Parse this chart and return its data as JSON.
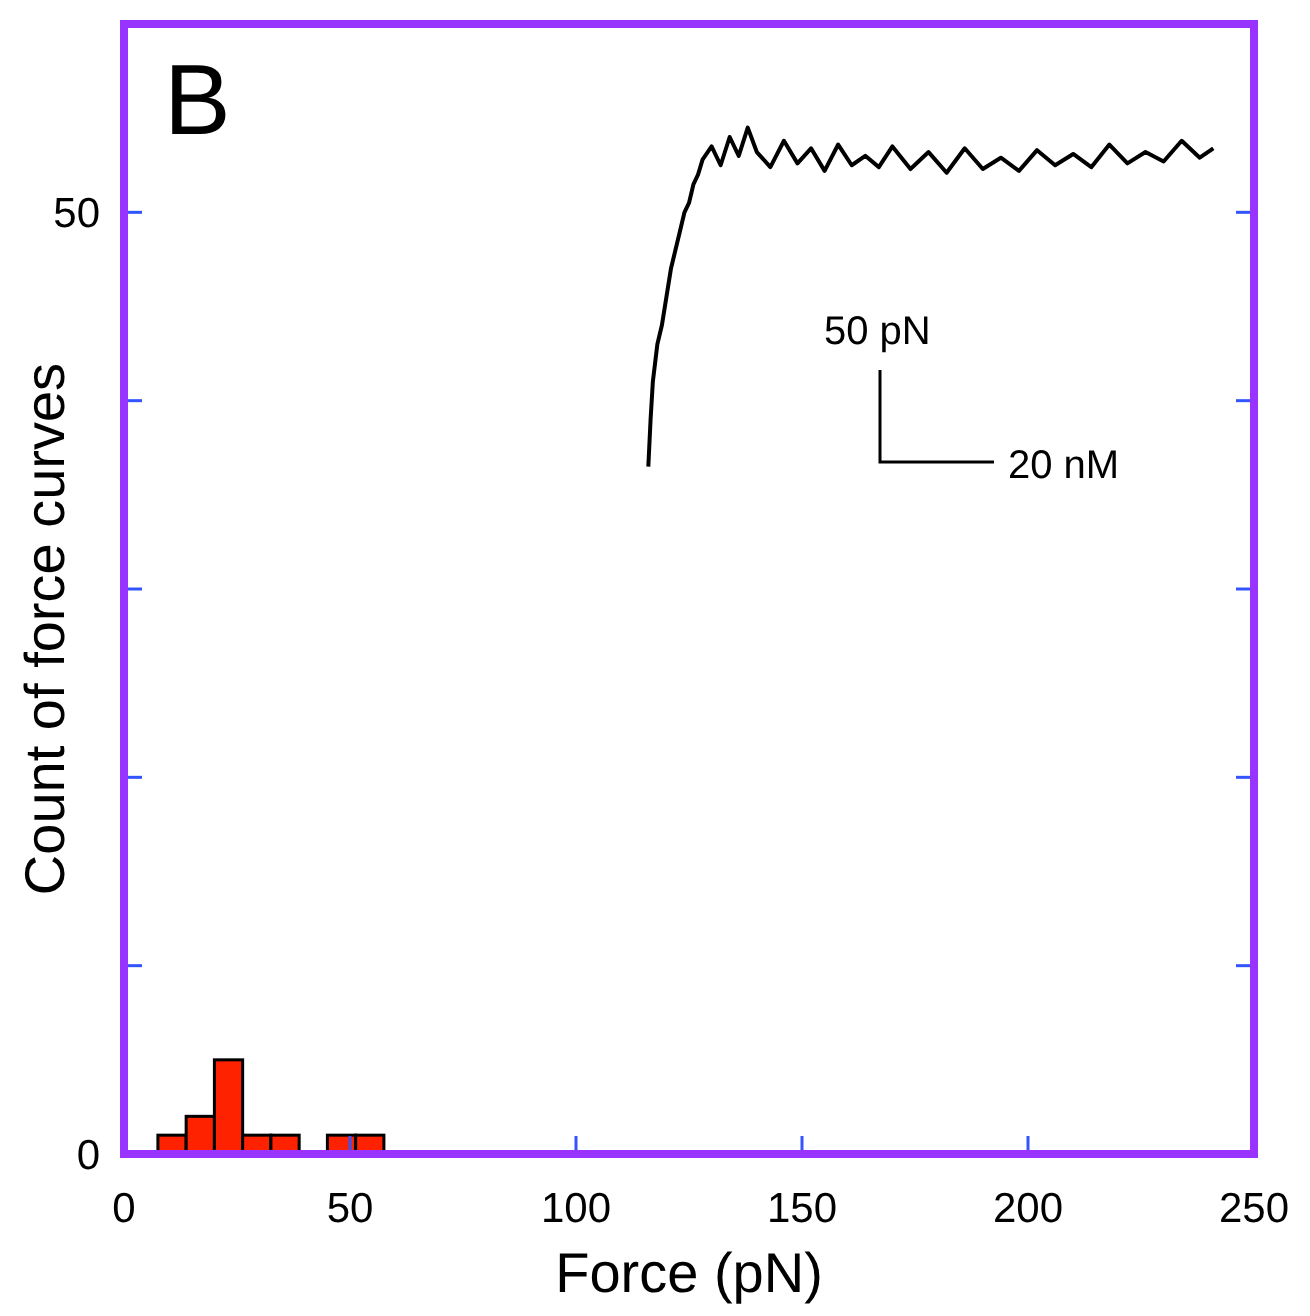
{
  "chart_data": {
    "type": "histogram",
    "title": "B",
    "xlabel": "Force (pN)",
    "ylabel": "Count of force curves",
    "bins": [
      7.5,
      13.75,
      20,
      26.25,
      32.5,
      38.75,
      45,
      51.25,
      57.5
    ],
    "values": [
      1,
      2,
      5,
      1,
      1,
      0,
      1,
      1
    ],
    "color": "#ff2200",
    "xlim": [
      0,
      250
    ],
    "xticks": [
      0,
      50,
      100,
      150,
      200,
      250
    ],
    "ylim": [
      0,
      60
    ],
    "yticks": [
      0,
      {
        "value": 10,
        "label": null
      },
      {
        "value": 20,
        "label": null
      },
      {
        "value": 30,
        "label": null
      },
      {
        "value": 40,
        "label": null
      },
      50
    ],
    "grid": false,
    "annotations": [
      "50 pN",
      "20 nM"
    ],
    "series": [
      {
        "type": "line",
        "color": "#000000",
        "x": [
          116,
          116.5,
          117,
          117.5,
          118,
          119,
          120,
          121,
          122,
          123,
          124,
          125,
          126,
          127,
          128,
          130,
          132,
          134,
          136,
          138,
          140,
          143,
          146,
          149,
          152,
          155,
          158,
          161,
          164,
          167,
          170,
          174,
          178,
          182,
          186,
          190,
          194,
          198,
          202,
          206,
          210,
          214,
          218,
          222,
          226,
          230,
          234,
          238,
          241
        ],
        "values": [
          36.5,
          39,
          41,
          42,
          43,
          44,
          45.5,
          47,
          48,
          49,
          50,
          50.5,
          51.5,
          52,
          52.8,
          53.5,
          52.5,
          54,
          53,
          54.5,
          53.2,
          52.4,
          53.8,
          52.6,
          53.4,
          52.2,
          53.6,
          52.5,
          53,
          52.4,
          53.5,
          52.3,
          53.2,
          52.1,
          53.4,
          52.3,
          52.9,
          52.2,
          53.3,
          52.5,
          53.1,
          52.4,
          53.6,
          52.6,
          53.2,
          52.7,
          53.8,
          52.9,
          53.4
        ]
      }
    ]
  }
}
